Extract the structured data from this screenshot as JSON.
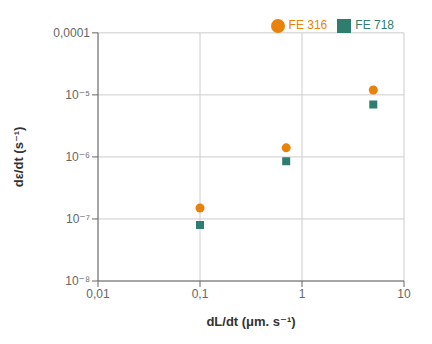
{
  "chart_data": {
    "type": "scatter",
    "x_label": "dL/dt  (μm. s⁻¹)",
    "y_label": "dε/dt (s⁻¹)",
    "log": true,
    "grid": true,
    "legend": "upper right",
    "xlim": [
      0.01,
      10
    ],
    "ylim": [
      1e-08,
      0.0001
    ],
    "xticks": [
      {
        "value": 0.01,
        "label": "0,01"
      },
      {
        "value": 0.1,
        "label": "0,1"
      },
      1,
      10
    ],
    "yticks": [
      {
        "value": 1e-08,
        "label": "10⁻⁸"
      },
      {
        "value": 1e-07,
        "label": "10⁻⁷"
      },
      {
        "value": 1e-06,
        "label": "10⁻⁶"
      },
      {
        "value": 1e-05,
        "label": "10⁻⁵"
      },
      {
        "value": 0.0001,
        "label": "0,0001"
      }
    ],
    "x": [
      0.1,
      0.7,
      5.0
    ],
    "series": [
      {
        "name": "FE  316",
        "color": "#e8820a",
        "marker": "circle",
        "values": [
          1.5e-07,
          1.4e-06,
          1.2e-05
        ]
      },
      {
        "name": "FE  718",
        "color": "#2e7d6e",
        "marker": "square",
        "values": [
          8e-08,
          8.5e-07,
          7e-06
        ]
      }
    ]
  }
}
